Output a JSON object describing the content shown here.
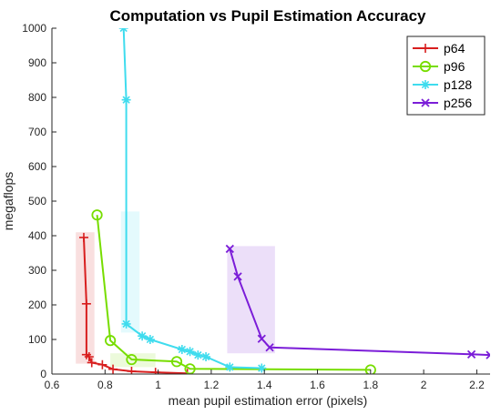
{
  "chart_data": {
    "type": "line",
    "title": "Computation vs Pupil Estimation Accuracy",
    "xlabel": "mean pupil estimation error (pixels)",
    "ylabel": "megaflops",
    "xlim": [
      0.6,
      2.25
    ],
    "ylim": [
      0,
      1000
    ],
    "xticks": [
      0.6,
      0.8,
      1,
      1.2,
      1.4,
      1.6,
      1.8,
      2,
      2.2
    ],
    "yticks": [
      0,
      100,
      200,
      300,
      400,
      500,
      600,
      700,
      800,
      900,
      1000
    ],
    "grid": false,
    "legend_position": "top-right",
    "series": [
      {
        "name": "p64",
        "color": "#d81e1e",
        "marker": "plus",
        "x": [
          0.72,
          0.73,
          0.73,
          0.74,
          0.75,
          0.79,
          0.83,
          0.9,
          0.99,
          1.11
        ],
        "y": [
          395,
          203,
          56,
          50,
          33,
          27,
          14,
          8,
          5,
          2
        ],
        "band_x": [
          0.69,
          0.76
        ],
        "band_y": [
          30,
          410
        ]
      },
      {
        "name": "p96",
        "color": "#77dd00",
        "marker": "circle",
        "x": [
          0.77,
          0.82,
          0.9,
          1.07,
          1.12,
          1.8
        ],
        "y": [
          460,
          97,
          42,
          36,
          15,
          12
        ],
        "band_x": [
          0.82,
          0.99
        ],
        "band_y": [
          20,
          60
        ]
      },
      {
        "name": "p128",
        "color": "#3fdcee",
        "marker": "asterisk",
        "x": [
          0.87,
          0.88,
          0.88,
          0.94,
          0.97,
          1.09,
          1.12,
          1.15,
          1.18,
          1.27,
          1.39
        ],
        "y": [
          1000,
          793,
          145,
          110,
          100,
          71,
          65,
          55,
          50,
          20,
          17
        ],
        "band_x": [
          0.86,
          0.93
        ],
        "band_y": [
          120,
          470
        ]
      },
      {
        "name": "p256",
        "color": "#7b1dd8",
        "marker": "x",
        "x": [
          1.27,
          1.3,
          1.39,
          1.42,
          2.18,
          2.25
        ],
        "y": [
          362,
          282,
          102,
          77,
          57,
          55
        ],
        "band_x": [
          1.26,
          1.44
        ],
        "band_y": [
          60,
          370
        ]
      }
    ]
  }
}
